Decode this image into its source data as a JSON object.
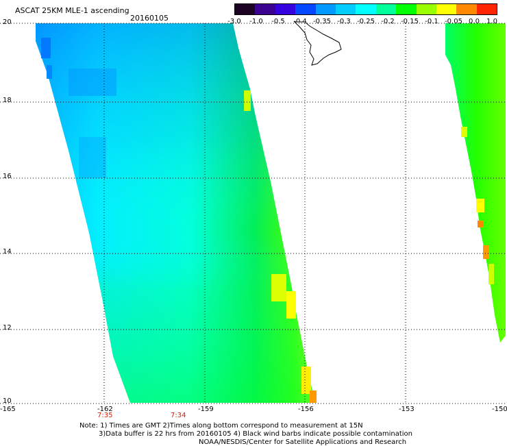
{
  "header": {
    "title": "ASCAT 25KM MLE-1 ascending",
    "date": "20160105"
  },
  "colorbar": {
    "labels": [
      "-3.0",
      "-1.0",
      "-0.5",
      "-0.4",
      "-0.35",
      "-0.3",
      "-0.25",
      "-0.2",
      "-0.15",
      "-0.1",
      "-0.05",
      "0.0",
      "1.0"
    ],
    "colors": [
      "#1a0020",
      "#3a0090",
      "#3300dd",
      "#0044ff",
      "#0099ff",
      "#00ccff",
      "#00ffff",
      "#00ff99",
      "#00ff00",
      "#99ff00",
      "#ffff00",
      "#ff8800",
      "#ff2200"
    ]
  },
  "map": {
    "y_axis_labels": [
      "20",
      "18",
      "16",
      "14",
      "12",
      "10"
    ],
    "x_axis_labels": [
      "-165",
      "-162",
      "-159",
      "-156",
      "-153",
      "-150"
    ],
    "pass_times": [
      "7:35",
      "7:34"
    ],
    "land_color": "#ffffff",
    "grid": "dotted"
  },
  "notes": {
    "line1": "Note: 1) Times are GMT 2)Times along bottom correspond to measurement at 15N",
    "line2": "3)Data buffer is 22 hrs from 20160105 4) Black wind barbs indicate possible contamination",
    "line3": "NOAA/NESDIS/Center for Satellite Applications and Research"
  }
}
